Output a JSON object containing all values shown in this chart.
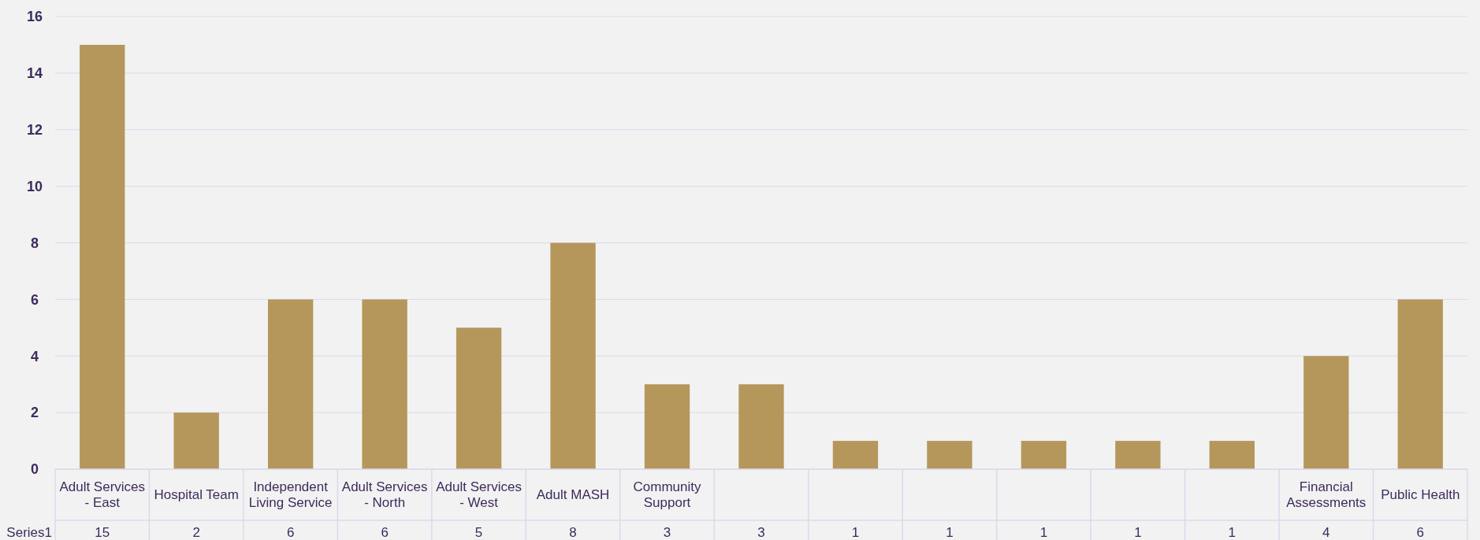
{
  "chart_data": {
    "type": "bar",
    "categories": [
      "Adult Services - East",
      "Hospital Team",
      "Independent Living Service",
      "Adult Services - North",
      "Adult Services - West",
      "Adult MASH",
      "Community Support",
      null,
      null,
      null,
      null,
      null,
      null,
      "Financial Assessments",
      "Public Health"
    ],
    "series": [
      {
        "name": "Series1",
        "color": "#b5975c",
        "values": [
          15,
          2,
          6,
          6,
          5,
          8,
          3,
          3,
          1,
          1,
          1,
          1,
          1,
          4,
          6
        ]
      }
    ],
    "ylim": [
      0,
      16
    ],
    "yticks": [
      0,
      2,
      4,
      6,
      8,
      10,
      12,
      14,
      16
    ],
    "grid": "y",
    "data_labels": true
  }
}
